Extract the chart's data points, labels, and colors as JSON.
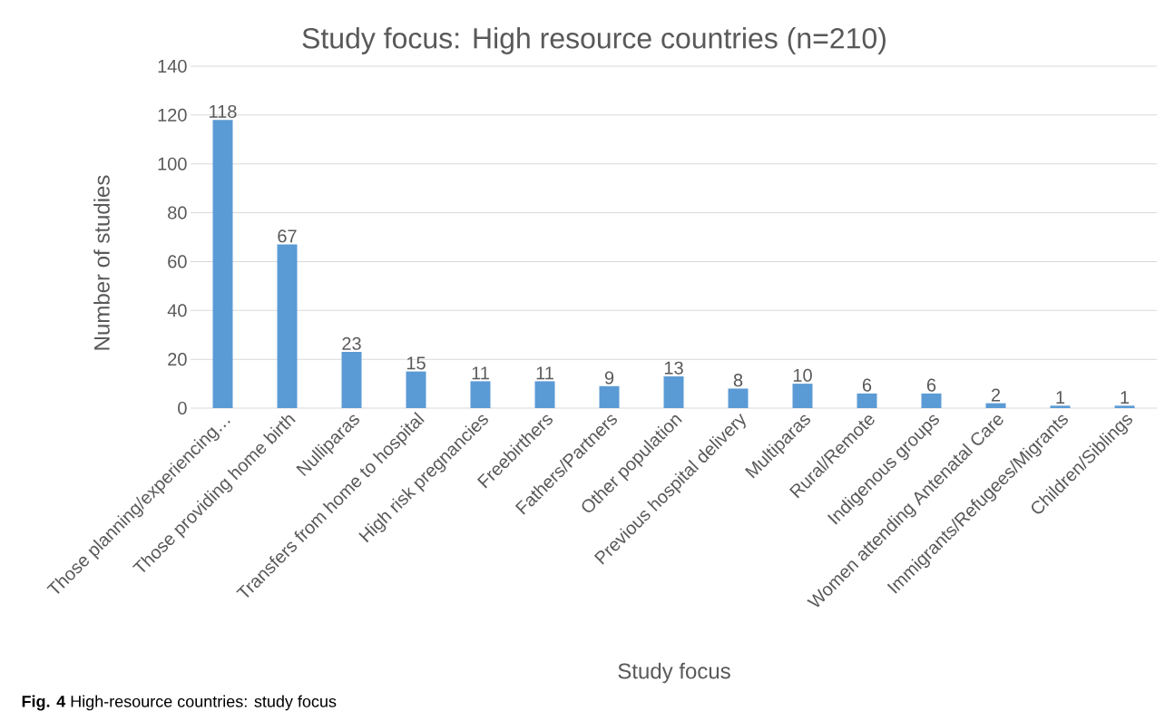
{
  "chart_data": {
    "type": "bar",
    "title": "Study focus: High resource countries (n=210)",
    "xlabel": "Study focus",
    "ylabel": "Number of studies",
    "categories": [
      "Those planning/experiencing…",
      "Those providing home birth",
      "Nulliparas",
      "Transfers from home to hospital",
      "High risk pregnancies",
      "Freebirthers",
      "Fathers/Partners",
      "Other population",
      "Previous hospital delivery",
      "Multiparas",
      "Rural/Remote",
      "Indigenous groups",
      "Women attending Antenatal Care",
      "Immigrants/Refugees/Migrants",
      "Children/Siblings"
    ],
    "values": [
      118,
      67,
      23,
      15,
      11,
      11,
      9,
      13,
      8,
      10,
      6,
      6,
      2,
      1,
      1
    ],
    "color": "#5b9bd5",
    "ylim": [
      0,
      140
    ],
    "yticks": [
      0,
      20,
      40,
      60,
      80,
      100,
      120,
      140
    ],
    "grid": "y",
    "data_labels": true,
    "annotations": [
      "**Fig. 4** High-resource countries: study focus"
    ]
  }
}
